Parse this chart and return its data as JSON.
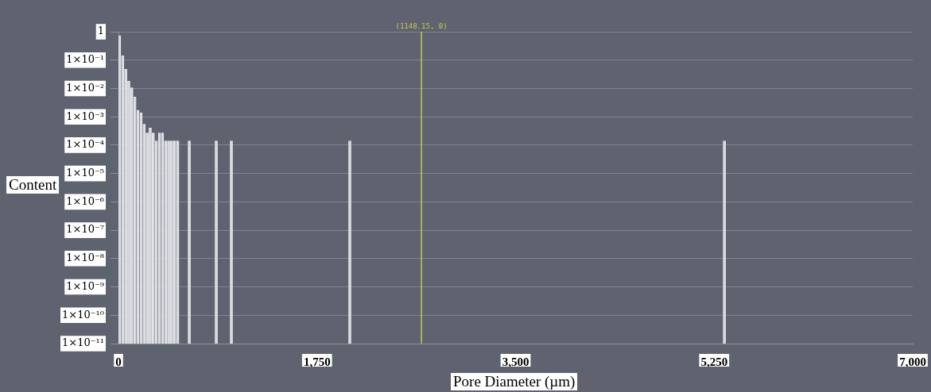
{
  "chart_data": {
    "type": "bar",
    "xlabel": "Pore Diameter (µm)",
    "ylabel": "Content",
    "x": [
      10,
      37,
      64,
      91,
      118,
      145,
      172,
      199,
      226,
      253,
      280,
      307,
      334,
      361,
      388,
      415,
      442,
      469,
      496,
      523,
      624,
      862,
      995,
      2039,
      5340
    ],
    "series": [
      {
        "color": "#d8dadf",
        "values": [
          0.72,
          0.145,
          0.047,
          0.018,
          0.0105,
          0.005,
          0.0017,
          0.0014,
          0.00055,
          0.00027,
          0.0004,
          0.00027,
          0.00014,
          0.00027,
          0.00027,
          0.00014,
          0.00014,
          0.00014,
          0.00014,
          0.00014,
          0.00014,
          0.00014,
          0.00014,
          0.00014,
          0.00014
        ]
      }
    ],
    "log": "y",
    "xlim": [
      0,
      7000
    ],
    "ylim": [
      1e-11,
      1
    ],
    "xticks": [
      0,
      {
        "value": 1750,
        "label": "1,750"
      },
      {
        "value": 3500,
        "label": "3,500"
      },
      {
        "value": 5250,
        "label": "5,250"
      },
      {
        "value": 7000,
        "label": "7,000"
      }
    ],
    "yticks": [
      {
        "value": 1e-11,
        "label": "1×10⁻¹¹"
      },
      {
        "value": 1e-10,
        "label": "1×10⁻¹⁰"
      },
      {
        "value": 1e-09,
        "label": "1×10⁻⁹"
      },
      {
        "value": 1e-08,
        "label": "1×10⁻⁸"
      },
      {
        "value": 1e-07,
        "label": "1×10⁻⁷"
      },
      {
        "value": 1e-06,
        "label": "1×10⁻⁶"
      },
      {
        "value": 1e-05,
        "label": "1×10⁻⁵"
      },
      {
        "value": 0.0001,
        "label": "1×10⁻⁴"
      },
      {
        "value": 0.001,
        "label": "1×10⁻³"
      },
      {
        "value": 0.01,
        "label": "1×10⁻²"
      },
      {
        "value": 0.1,
        "label": "1×10⁻¹"
      },
      1
    ],
    "grid": "y",
    "legend": false,
    "ref_lines": [
      {
        "axis": "x",
        "value": 2670,
        "color": "#c8c850"
      }
    ],
    "annotations": [
      "(1148.15, 0)"
    ]
  }
}
